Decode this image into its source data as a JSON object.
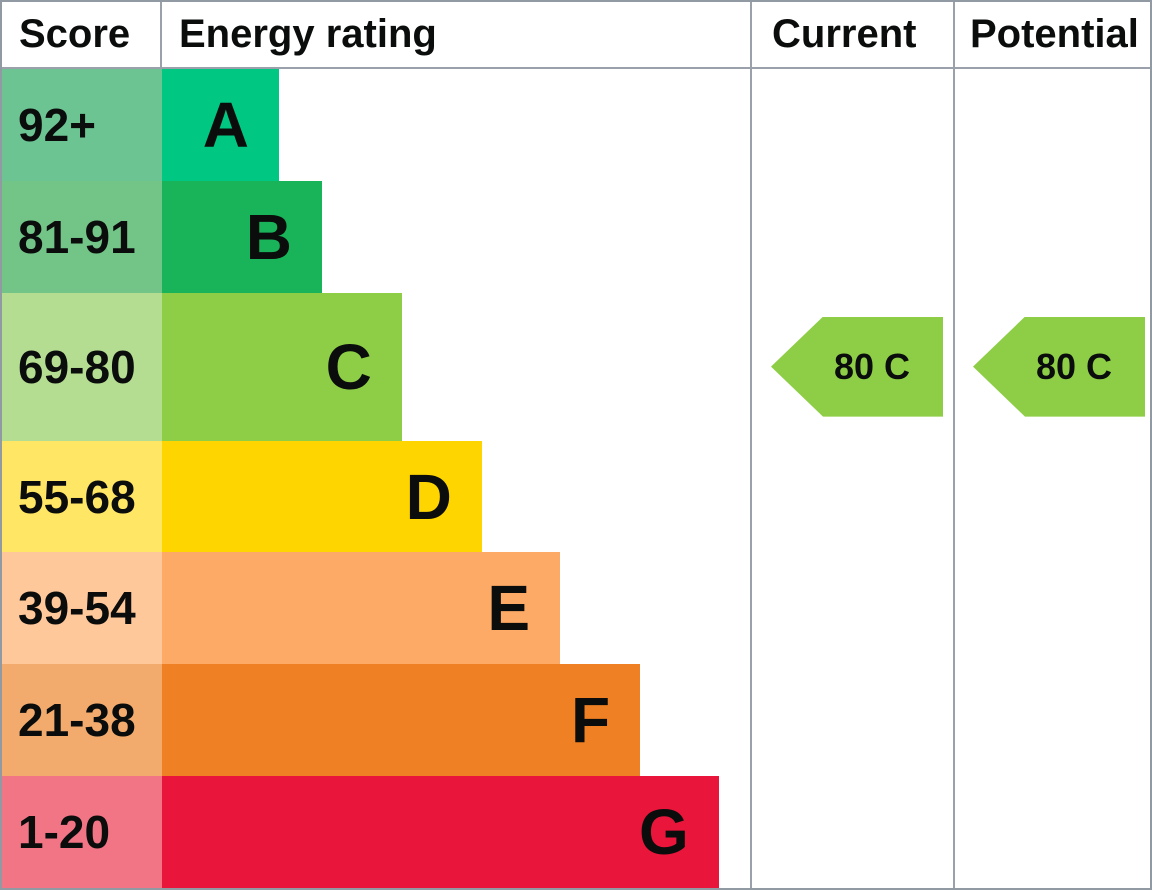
{
  "header": {
    "score": "Score",
    "energy_rating": "Energy rating",
    "current": "Current",
    "potential": "Potential"
  },
  "bands": [
    {
      "letter": "A",
      "score_range": "92+",
      "bar_color": "#00c781",
      "score_bg": "#6cc493",
      "bar_width_pct": 19.9
    },
    {
      "letter": "B",
      "score_range": "81-91",
      "bar_color": "#19b459",
      "score_bg": "#72c487",
      "bar_width_pct": 27.2
    },
    {
      "letter": "C",
      "score_range": "69-80",
      "bar_color": "#8dce46",
      "score_bg": "#b4dd92",
      "bar_width_pct": 40.8
    },
    {
      "letter": "D",
      "score_range": "55-68",
      "bar_color": "#ffd500",
      "score_bg": "#ffe664",
      "bar_width_pct": 54.4
    },
    {
      "letter": "E",
      "score_range": "39-54",
      "bar_color": "#fcaa65",
      "score_bg": "#ffc89a",
      "bar_width_pct": 67.7
    },
    {
      "letter": "F",
      "score_range": "21-38",
      "bar_color": "#ef8023",
      "score_bg": "#f2ab6d",
      "bar_width_pct": 81.3
    },
    {
      "letter": "G",
      "score_range": "1-20",
      "bar_color": "#e9153b",
      "score_bg": "#f27586",
      "bar_width_pct": 94.7
    }
  ],
  "current": {
    "label": "80 C",
    "score": 80,
    "band": "C",
    "row_index": 2,
    "arrow_color": "#8dce46"
  },
  "potential": {
    "label": "80 C",
    "score": 80,
    "band": "C",
    "row_index": 2,
    "arrow_color": "#8dce46"
  },
  "colors": {
    "grid_line": "#9aa1ab",
    "outer_border": "#9199a3",
    "text": "#0b0c0c"
  },
  "chart_data": {
    "type": "bar",
    "title": "Energy efficiency rating chart (EPC)",
    "columns": [
      "Score",
      "Energy rating",
      "Current",
      "Potential"
    ],
    "categories": [
      "A",
      "B",
      "C",
      "D",
      "E",
      "F",
      "G"
    ],
    "band_score_ranges": [
      "92+",
      "81-91",
      "69-80",
      "55-68",
      "39-54",
      "21-38",
      "1-20"
    ],
    "bar_width_pct_of_column": [
      19.9,
      27.2,
      40.8,
      54.4,
      67.7,
      81.3,
      94.7
    ],
    "band_colors": [
      "#00c781",
      "#19b459",
      "#8dce46",
      "#ffd500",
      "#fcaa65",
      "#ef8023",
      "#e9153b"
    ],
    "current": {
      "score": 80,
      "band": "C"
    },
    "potential": {
      "score": 80,
      "band": "C"
    },
    "legend_position": "none",
    "grid": "column dividers only"
  }
}
